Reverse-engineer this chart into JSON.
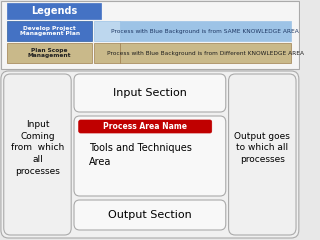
{
  "bg_color": "#e8e8e8",
  "legend_title": "Legends",
  "legend_box_color": "#4472c4",
  "legend_box_text_color": "#ffffff",
  "row1_left_label": "Develop Project\nManagement Plan",
  "row1_left_color": "#4472c4",
  "row1_right_label": "Process with Blue Background is from SAME KNOWLEDGE AREA",
  "row1_right_color": "#9dc3e6",
  "row1_right_sep_color": "#bdd7ee",
  "row2_left_label": "Plan Scope\nManagement",
  "row2_left_color": "#c9b98a",
  "row2_right_label": "Process with Blue Background is from Different KNOWLEDGE AREA",
  "row2_right_color": "#c9b98a",
  "input_section_label": "Input Section",
  "tools_section_label": "Tools and Techniques\nArea",
  "output_section_label": "Output Section",
  "process_area_name": "Process Area Name",
  "process_area_color": "#c00000",
  "process_area_text_color": "#ffffff",
  "left_text": "Input\nComing\nfrom  which\nall\nprocesses",
  "right_text": "Output goes\nto which all\nprocesses"
}
